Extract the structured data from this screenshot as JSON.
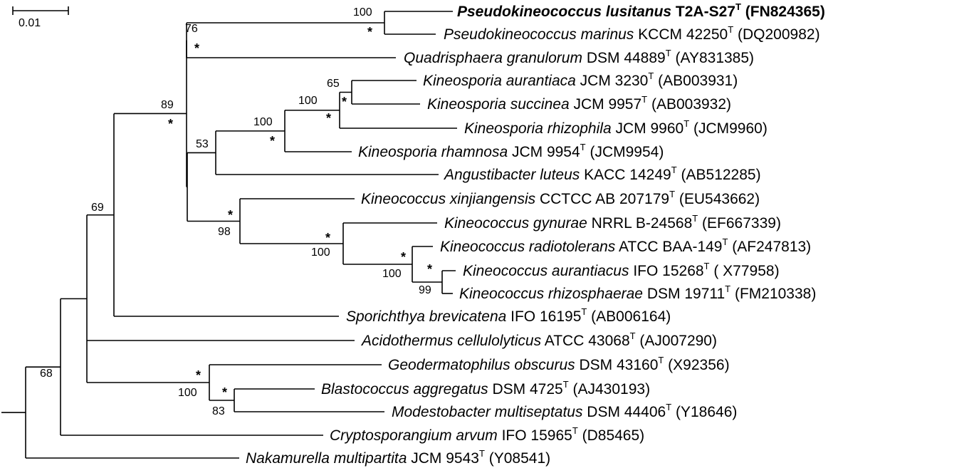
{
  "scale_bar": {
    "label": "0.01"
  },
  "taxa": [
    {
      "id": "t1",
      "genus": "Pseudokineococcus lusitanus",
      "strain": "T2A-S27",
      "accession": "(FN824365)",
      "bold": true
    },
    {
      "id": "t2",
      "genus": "Pseudokineococcus marinus",
      "strain": "KCCM 42250",
      "accession": "(DQ200982)"
    },
    {
      "id": "t3",
      "genus": "Quadrisphaera granulorum",
      "strain": "DSM 44889",
      "accession": "(AY831385)"
    },
    {
      "id": "t4",
      "genus": "Kineosporia aurantiaca",
      "strain": "JCM 3230",
      "accession": "(AB003931)"
    },
    {
      "id": "t5",
      "genus": "Kineosporia succinea",
      "strain": "JCM 9957",
      "accession": "(AB003932)"
    },
    {
      "id": "t6",
      "genus": "Kineosporia rhizophila",
      "strain": "JCM 9960",
      "accession": "(JCM9960)"
    },
    {
      "id": "t7",
      "genus": "Kineosporia rhamnosa",
      "strain": "JCM 9954",
      "accession": "(JCM9954)"
    },
    {
      "id": "t8",
      "genus": "Angustibacter luteus",
      "strain": "KACC 14249",
      "accession": "(AB512285)"
    },
    {
      "id": "t9",
      "genus": "Kineococcus xinjiangensis",
      "strain": "CCTCC AB 207179",
      "accession": "(EU543662)"
    },
    {
      "id": "t10",
      "genus": "Kineococcus gynurae",
      "strain": "NRRL B-24568",
      "accession": "(EF667339)"
    },
    {
      "id": "t11",
      "genus": "Kineococcus radiotolerans",
      "strain": "ATCC BAA-149",
      "accession": "(AF247813)"
    },
    {
      "id": "t12",
      "genus": "Kineococcus aurantiacus",
      "strain": "IFO 15268",
      "accession": "( X77958)"
    },
    {
      "id": "t13",
      "genus": "Kineococcus rhizosphaerae",
      "strain": "DSM 19711",
      "accession": "(FM210338)"
    },
    {
      "id": "t14",
      "genus": "Sporichthya brevicatena",
      "strain": "IFO 16195",
      "accession": "(AB006164)"
    },
    {
      "id": "t15",
      "genus": "Acidothermus cellulolyticus",
      "strain": "ATCC 43068",
      "accession": "(AJ007290)"
    },
    {
      "id": "t16",
      "genus": "Geodermatophilus obscurus",
      "strain": "DSM 43160",
      "accession": "(X92356)"
    },
    {
      "id": "t17",
      "genus": "Blastococcus aggregatus",
      "strain": "DSM 4725",
      "accession": "(AJ430193)"
    },
    {
      "id": "t18",
      "genus": "Modestobacter multiseptatus",
      "strain": " DSM 44406",
      "accession": "(Y18646)"
    },
    {
      "id": "t19",
      "genus": "Cryptosporangium arvum",
      "strain": "IFO 15965",
      "accession": "(D85465)"
    },
    {
      "id": "t20",
      "genus": "Nakamurella multipartita",
      "strain": "JCM 9543",
      "accession": "(Y08541)"
    }
  ],
  "type_strain_mark": "T",
  "support_values": {
    "n_pseudo": "100",
    "n_pq": "76",
    "n_ks": "65",
    "n_ksr": "100",
    "n_kin": "100",
    "n_ka": "53",
    "n_upper": "89",
    "n_kx": "98",
    "n_kg": "100",
    "n_kr": "100",
    "n_kar": "99",
    "n_core": "69",
    "n_geo": "100",
    "n_bm": "83",
    "n_root": "68"
  },
  "star_mark": "*"
}
